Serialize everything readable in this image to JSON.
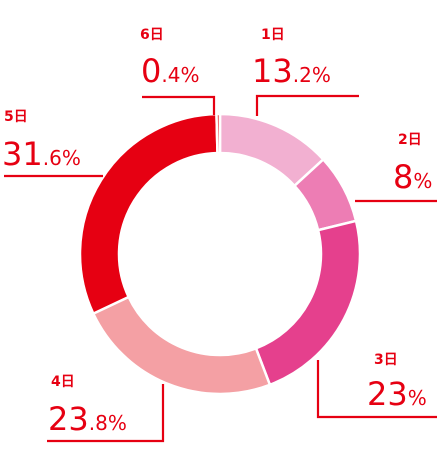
{
  "chart_data": {
    "type": "pie",
    "subtype": "donut",
    "slices": [
      {
        "label": "1日",
        "value": 13.2,
        "int": "13",
        "dec": ".2",
        "pct": "%",
        "color": "#f2b0d1"
      },
      {
        "label": "2日",
        "value": 8,
        "int": "8",
        "dec": "",
        "pct": "%",
        "color": "#ed7db4"
      },
      {
        "label": "3日",
        "value": 23,
        "int": "23",
        "dec": "",
        "pct": "%",
        "color": "#e5408d"
      },
      {
        "label": "4日",
        "value": 23.8,
        "int": "23",
        "dec": ".8",
        "pct": "%",
        "color": "#f4a0a4"
      },
      {
        "label": "5日",
        "value": 31.6,
        "int": "31",
        "dec": ".6",
        "pct": "%",
        "color": "#e60012"
      },
      {
        "label": "6日",
        "value": 0.4,
        "int": "0",
        "dec": ".4",
        "pct": "%",
        "color": "#e4454a"
      }
    ],
    "label_color": "#e60012",
    "legend": "none"
  }
}
